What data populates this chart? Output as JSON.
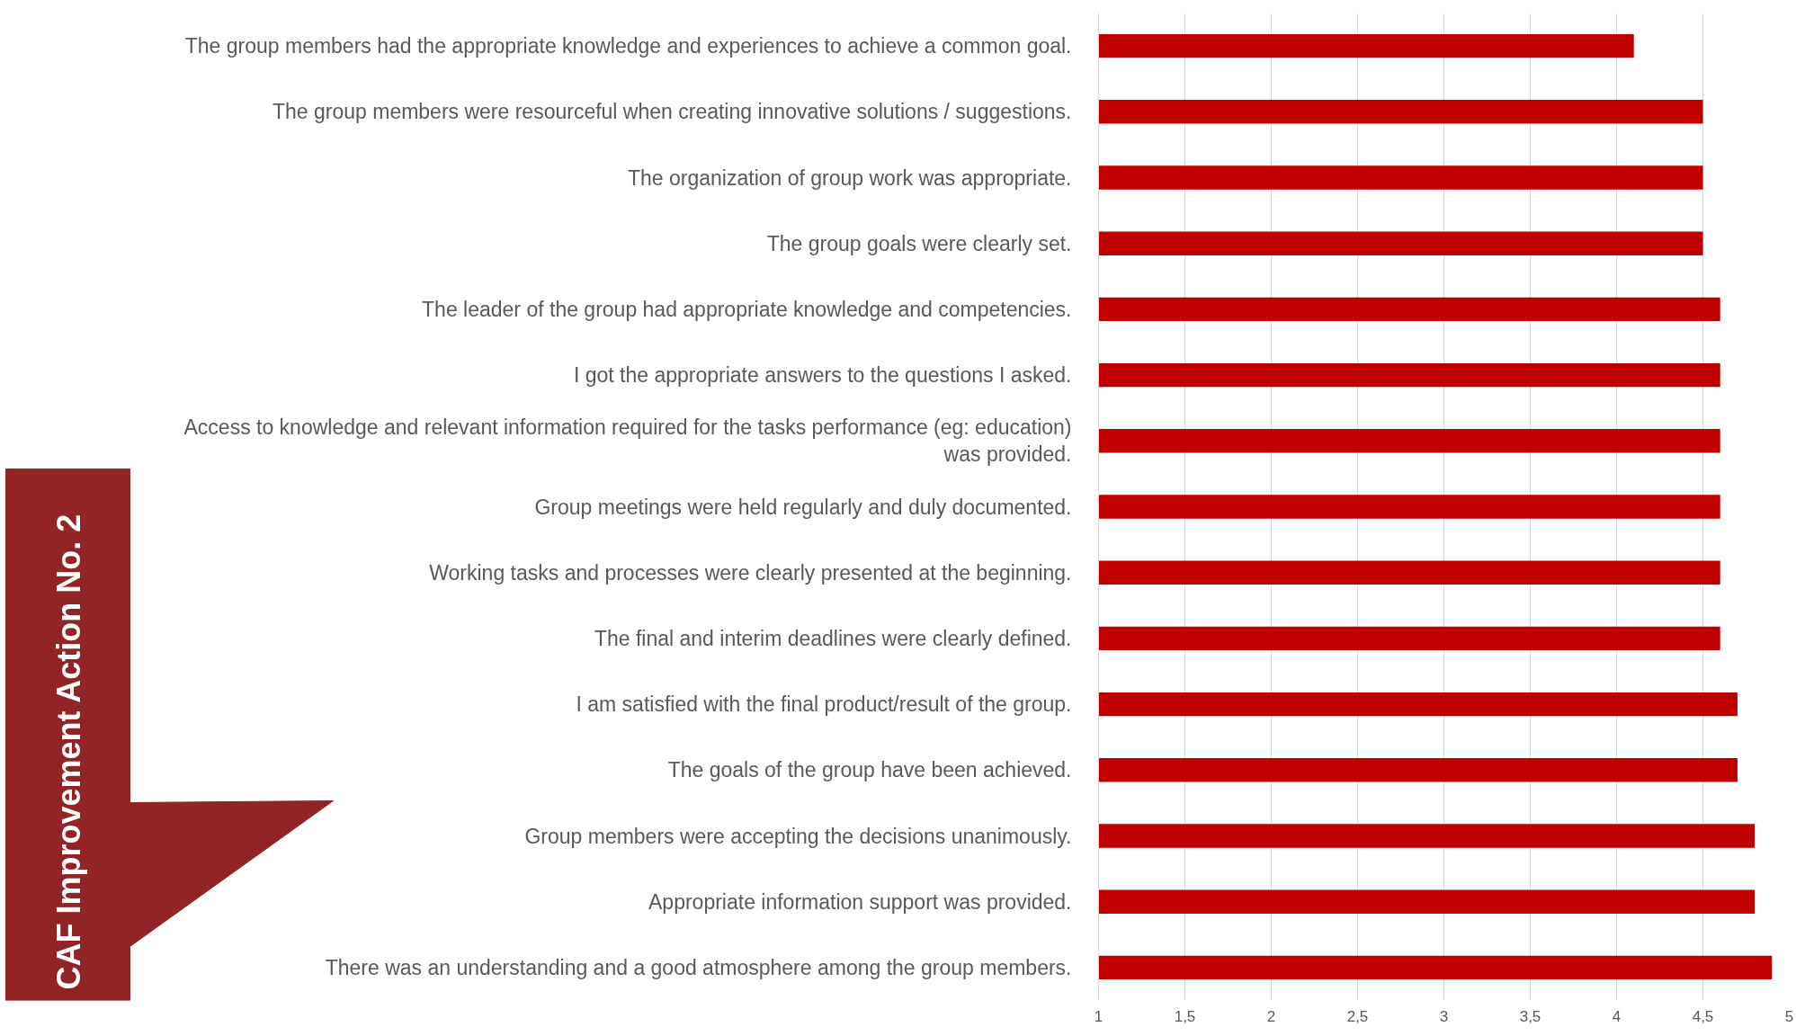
{
  "chart_data": {
    "type": "bar",
    "orientation": "horizontal",
    "color": "#c00000",
    "categories": [
      "The group members had the appropriate knowledge and experiences to achieve a common goal.",
      "The group members were resourceful when creating innovative solutions / suggestions.",
      "The organization of group work was appropriate.",
      "The group goals were clearly set.",
      "The leader of the group had appropriate knowledge and competencies.",
      "I got the appropriate answers to the questions I asked.",
      "Access to knowledge and relevant information required for the tasks performance (eg: education) was provided.",
      "Group meetings were held regularly and duly documented.",
      "Working tasks and processes were clearly presented at the beginning.",
      "The final and interim deadlines were clearly defined.",
      "I am satisfied with the final product/result of the group.",
      "The goals of the group have been achieved.",
      "Group members were accepting the decisions unanimously.",
      "Appropriate information support was provided.",
      "There was an understanding and a good atmosphere among the group members."
    ],
    "values": [
      4.1,
      4.5,
      4.5,
      4.5,
      4.6,
      4.6,
      4.6,
      4.6,
      4.6,
      4.6,
      4.7,
      4.7,
      4.8,
      4.8,
      4.9
    ],
    "xlim": [
      1,
      5
    ],
    "xticks": [
      1,
      {
        "value": 1.5,
        "label": "1,5"
      },
      2,
      {
        "value": 2.5,
        "label": "2,5"
      },
      3,
      {
        "value": 3.5,
        "label": "3,5"
      },
      4,
      {
        "value": 4.5,
        "label": "4,5"
      },
      5
    ],
    "grid": "x",
    "annotations": [
      "CAF Improvement Action No. 2"
    ]
  }
}
